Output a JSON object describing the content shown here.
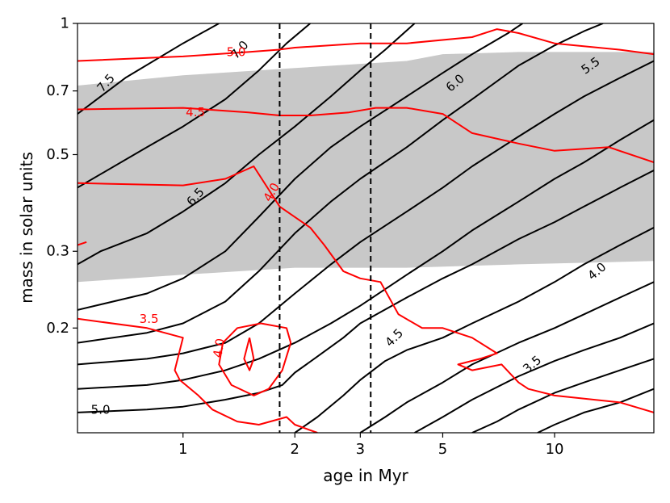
{
  "chart_data": {
    "type": "contour",
    "xlabel": "age in Myr",
    "ylabel": "mass in solar units",
    "x_scale": "log",
    "y_scale": "log",
    "xlim": [
      0.52,
      18.5
    ],
    "ylim": [
      0.115,
      1.0
    ],
    "x_ticks": [
      {
        "value": 1,
        "label": "1"
      },
      {
        "value": 2,
        "label": "2"
      },
      {
        "value": 3,
        "label": "3"
      },
      {
        "value": 5,
        "label": "5"
      },
      {
        "value": 10,
        "label": "10"
      }
    ],
    "y_ticks": [
      {
        "value": 0.2,
        "label": "0.2"
      },
      {
        "value": 0.3,
        "label": "0.3"
      },
      {
        "value": 0.5,
        "label": "0.5"
      },
      {
        "value": 0.7,
        "label": "0.7"
      },
      {
        "value": 1.0,
        "label": "1"
      }
    ],
    "colors": {
      "black_contours": "#000000",
      "red_contours": "#ff0000",
      "shaded_band": "#c8c8c8",
      "vlines": "#000000"
    },
    "shaded_band": {
      "upper": [
        [
          0.52,
          0.72
        ],
        [
          1.0,
          0.76
        ],
        [
          2.0,
          0.79
        ],
        [
          4.0,
          0.82
        ],
        [
          5.0,
          0.85
        ],
        [
          8.0,
          0.86
        ],
        [
          18.5,
          0.86
        ]
      ],
      "lower": [
        [
          0.52,
          0.255
        ],
        [
          1.0,
          0.265
        ],
        [
          2.0,
          0.275
        ],
        [
          4.0,
          0.275
        ],
        [
          8.0,
          0.28
        ],
        [
          18.5,
          0.285
        ]
      ]
    },
    "vertical_lines": [
      1.82,
      3.2
    ],
    "black_contours": [
      {
        "level": "7.5",
        "points": [
          [
            0.52,
            0.62
          ],
          [
            0.7,
            0.75
          ],
          [
            1.0,
            0.9
          ],
          [
            1.25,
            1.0
          ]
        ]
      },
      {
        "level": "7.0",
        "points": [
          [
            0.52,
            0.42
          ],
          [
            0.8,
            0.52
          ],
          [
            1.0,
            0.58
          ],
          [
            1.3,
            0.67
          ],
          [
            1.6,
            0.78
          ],
          [
            1.9,
            0.9
          ],
          [
            2.2,
            1.0
          ]
        ]
      },
      {
        "level": "6.5",
        "points": [
          [
            0.52,
            0.28
          ],
          [
            0.6,
            0.3
          ],
          [
            0.8,
            0.33
          ],
          [
            1.0,
            0.37
          ],
          [
            1.3,
            0.43
          ],
          [
            1.6,
            0.5
          ],
          [
            2.0,
            0.58
          ],
          [
            2.5,
            0.68
          ],
          [
            3.0,
            0.78
          ],
          [
            3.5,
            0.87
          ],
          [
            4.2,
            1.0
          ]
        ]
      },
      {
        "level": "",
        "points": [
          [
            0.52,
            0.22
          ],
          [
            0.8,
            0.24
          ],
          [
            1.0,
            0.26
          ],
          [
            1.3,
            0.3
          ],
          [
            1.6,
            0.36
          ],
          [
            2.0,
            0.44
          ],
          [
            2.5,
            0.52
          ],
          [
            3.0,
            0.58
          ],
          [
            4.0,
            0.68
          ],
          [
            5.0,
            0.77
          ],
          [
            6.0,
            0.85
          ],
          [
            7.5,
            0.95
          ],
          [
            8.2,
            1.0
          ]
        ]
      },
      {
        "level": "6.0",
        "points": [
          [
            0.52,
            0.185
          ],
          [
            0.8,
            0.195
          ],
          [
            1.0,
            0.205
          ],
          [
            1.3,
            0.23
          ],
          [
            1.6,
            0.27
          ],
          [
            2.0,
            0.33
          ],
          [
            2.5,
            0.39
          ],
          [
            3.0,
            0.44
          ],
          [
            4.0,
            0.52
          ],
          [
            5.0,
            0.6
          ],
          [
            6.0,
            0.67
          ],
          [
            8.0,
            0.8
          ],
          [
            10.0,
            0.89
          ],
          [
            12.0,
            0.96
          ],
          [
            13.5,
            1.0
          ]
        ]
      },
      {
        "level": "5.5",
        "points": [
          [
            0.52,
            0.165
          ],
          [
            0.8,
            0.17
          ],
          [
            1.0,
            0.175
          ],
          [
            1.3,
            0.185
          ],
          [
            1.6,
            0.205
          ],
          [
            2.0,
            0.24
          ],
          [
            2.5,
            0.28
          ],
          [
            3.0,
            0.315
          ],
          [
            4.0,
            0.37
          ],
          [
            5.0,
            0.42
          ],
          [
            6.0,
            0.47
          ],
          [
            8.0,
            0.55
          ],
          [
            10.0,
            0.62
          ],
          [
            12.0,
            0.68
          ],
          [
            15.0,
            0.75
          ],
          [
            18.5,
            0.82
          ]
        ]
      },
      {
        "level": "",
        "points": [
          [
            0.52,
            0.145
          ],
          [
            0.8,
            0.148
          ],
          [
            1.0,
            0.152
          ],
          [
            1.3,
            0.16
          ],
          [
            1.6,
            0.17
          ],
          [
            2.0,
            0.185
          ],
          [
            2.5,
            0.205
          ],
          [
            3.0,
            0.225
          ],
          [
            4.0,
            0.265
          ],
          [
            5.0,
            0.3
          ],
          [
            6.0,
            0.335
          ],
          [
            8.0,
            0.39
          ],
          [
            10.0,
            0.44
          ],
          [
            12.0,
            0.48
          ],
          [
            15.0,
            0.54
          ],
          [
            18.5,
            0.6
          ]
        ]
      },
      {
        "level": "5.0",
        "points": [
          [
            0.52,
            0.128
          ],
          [
            0.8,
            0.13
          ],
          [
            1.0,
            0.132
          ],
          [
            1.3,
            0.137
          ],
          [
            1.6,
            0.142
          ],
          [
            1.85,
            0.148
          ],
          [
            2.0,
            0.158
          ],
          [
            2.3,
            0.172
          ],
          [
            2.7,
            0.19
          ],
          [
            3.0,
            0.205
          ],
          [
            4.0,
            0.235
          ],
          [
            5.0,
            0.26
          ],
          [
            6.0,
            0.28
          ],
          [
            8.0,
            0.32
          ],
          [
            10.0,
            0.35
          ],
          [
            12.0,
            0.38
          ],
          [
            15.0,
            0.42
          ],
          [
            18.5,
            0.46
          ]
        ]
      },
      {
        "level": "4.5",
        "points": [
          [
            2.0,
            0.115
          ],
          [
            2.3,
            0.125
          ],
          [
            2.7,
            0.14
          ],
          [
            3.0,
            0.152
          ],
          [
            3.5,
            0.168
          ],
          [
            4.0,
            0.178
          ],
          [
            5.0,
            0.19
          ],
          [
            6.0,
            0.205
          ],
          [
            8.0,
            0.23
          ],
          [
            10.0,
            0.255
          ],
          [
            12.0,
            0.28
          ],
          [
            15.0,
            0.31
          ],
          [
            18.5,
            0.34
          ]
        ]
      },
      {
        "level": "4.0",
        "points": [
          [
            3.0,
            0.115
          ],
          [
            3.5,
            0.125
          ],
          [
            4.0,
            0.135
          ],
          [
            5.0,
            0.15
          ],
          [
            6.0,
            0.165
          ],
          [
            8.0,
            0.185
          ],
          [
            10.0,
            0.2
          ],
          [
            12.0,
            0.215
          ],
          [
            15.0,
            0.235
          ],
          [
            18.5,
            0.255
          ]
        ]
      },
      {
        "level": "",
        "points": [
          [
            4.2,
            0.115
          ],
          [
            5.0,
            0.125
          ],
          [
            6.0,
            0.137
          ],
          [
            8.0,
            0.155
          ],
          [
            10.0,
            0.168
          ],
          [
            12.0,
            0.178
          ],
          [
            15.0,
            0.19
          ],
          [
            18.5,
            0.205
          ]
        ]
      },
      {
        "level": "3.5",
        "points": [
          [
            6.0,
            0.115
          ],
          [
            7.0,
            0.122
          ],
          [
            8.0,
            0.13
          ],
          [
            10.0,
            0.142
          ],
          [
            12.0,
            0.15
          ],
          [
            15.0,
            0.16
          ],
          [
            18.5,
            0.17
          ]
        ]
      },
      {
        "level": "",
        "points": [
          [
            9.0,
            0.115
          ],
          [
            10.0,
            0.12
          ],
          [
            12.0,
            0.128
          ],
          [
            15.0,
            0.135
          ],
          [
            18.5,
            0.145
          ]
        ]
      }
    ],
    "red_contours": [
      {
        "level": "5.0",
        "points": [
          [
            0.52,
            0.82
          ],
          [
            1.0,
            0.84
          ],
          [
            1.5,
            0.86
          ],
          [
            1.8,
            0.87
          ],
          [
            2.0,
            0.88
          ],
          [
            3.0,
            0.9
          ],
          [
            4.0,
            0.9
          ],
          [
            6.0,
            0.93
          ],
          [
            7.0,
            0.97
          ],
          [
            8.0,
            0.95
          ],
          [
            10.0,
            0.9
          ],
          [
            15.0,
            0.87
          ],
          [
            18.5,
            0.85
          ]
        ]
      },
      {
        "level": "4.5",
        "points": [
          [
            0.52,
            0.635
          ],
          [
            1.0,
            0.64
          ],
          [
            1.5,
            0.625
          ],
          [
            1.82,
            0.615
          ],
          [
            2.2,
            0.615
          ],
          [
            2.8,
            0.625
          ],
          [
            3.3,
            0.64
          ],
          [
            4.0,
            0.64
          ],
          [
            5.0,
            0.62
          ],
          [
            6.0,
            0.56
          ],
          [
            8.0,
            0.53
          ],
          [
            10.0,
            0.51
          ],
          [
            14.0,
            0.52
          ],
          [
            18.5,
            0.48
          ]
        ]
      },
      {
        "level": "4.0",
        "points": [
          [
            0.52,
            0.43
          ],
          [
            1.0,
            0.425
          ],
          [
            1.3,
            0.44
          ],
          [
            1.55,
            0.47
          ],
          [
            1.82,
            0.38
          ],
          [
            2.2,
            0.34
          ],
          [
            2.4,
            0.31
          ],
          [
            2.7,
            0.27
          ],
          [
            3.0,
            0.26
          ],
          [
            3.4,
            0.255
          ],
          [
            3.8,
            0.215
          ],
          [
            4.4,
            0.2
          ],
          [
            5.0,
            0.2
          ],
          [
            6.0,
            0.19
          ],
          [
            7.0,
            0.175
          ],
          [
            6.3,
            0.17
          ],
          [
            5.5,
            0.165
          ],
          [
            6.0,
            0.16
          ],
          [
            7.2,
            0.165
          ],
          [
            8.0,
            0.15
          ],
          [
            8.5,
            0.145
          ],
          [
            10.0,
            0.14
          ],
          [
            15.0,
            0.135
          ],
          [
            18.5,
            0.128
          ]
        ]
      },
      {
        "level": "3.5",
        "points": [
          [
            0.52,
            0.21
          ],
          [
            0.8,
            0.2
          ],
          [
            1.0,
            0.19
          ],
          [
            0.95,
            0.16
          ],
          [
            0.98,
            0.152
          ],
          [
            1.1,
            0.14
          ],
          [
            1.2,
            0.13
          ],
          [
            1.4,
            0.122
          ],
          [
            1.6,
            0.12
          ],
          [
            1.9,
            0.125
          ],
          [
            2.0,
            0.12
          ],
          [
            2.3,
            0.115
          ]
        ]
      },
      {
        "level": "4.0",
        "points": [
          [
            1.62,
            0.205
          ],
          [
            1.9,
            0.2
          ],
          [
            1.95,
            0.185
          ],
          [
            1.85,
            0.16
          ],
          [
            1.7,
            0.145
          ],
          [
            1.55,
            0.14
          ],
          [
            1.35,
            0.148
          ],
          [
            1.25,
            0.165
          ],
          [
            1.28,
            0.185
          ],
          [
            1.4,
            0.2
          ],
          [
            1.62,
            0.205
          ]
        ]
      },
      {
        "level": "",
        "points": [
          [
            1.51,
            0.19
          ],
          [
            1.55,
            0.17
          ],
          [
            1.51,
            0.16
          ],
          [
            1.46,
            0.17
          ],
          [
            1.51,
            0.19
          ]
        ]
      },
      {
        "level": "",
        "points": [
          [
            0.52,
            0.31
          ],
          [
            0.55,
            0.315
          ]
        ]
      }
    ],
    "contour_labels": [
      {
        "text": "7.5",
        "x": 0.62,
        "y": 0.73,
        "color": "black",
        "angle": -48
      },
      {
        "text": "7.0",
        "x": 1.42,
        "y": 0.87,
        "color": "black",
        "angle": -48
      },
      {
        "text": "6.5",
        "x": 1.08,
        "y": 0.4,
        "color": "black",
        "angle": -48
      },
      {
        "text": "6.0",
        "x": 5.4,
        "y": 0.73,
        "color": "black",
        "angle": -40
      },
      {
        "text": "5.5",
        "x": 12.5,
        "y": 0.8,
        "color": "black",
        "angle": -35
      },
      {
        "text": "5.0",
        "x": 0.6,
        "y": 0.13,
        "color": "black",
        "angle": 0
      },
      {
        "text": "4.5",
        "x": 3.7,
        "y": 0.19,
        "color": "black",
        "angle": -45
      },
      {
        "text": "4.0",
        "x": 13.0,
        "y": 0.27,
        "color": "black",
        "angle": -40
      },
      {
        "text": "3.5",
        "x": 8.7,
        "y": 0.165,
        "color": "black",
        "angle": -40
      },
      {
        "text": "5.0",
        "x": 1.39,
        "y": 0.86,
        "color": "red",
        "angle": 0
      },
      {
        "text": "4.5",
        "x": 1.08,
        "y": 0.625,
        "color": "red",
        "angle": 0
      },
      {
        "text": "4.0",
        "x": 1.73,
        "y": 0.41,
        "color": "red",
        "angle": -60
      },
      {
        "text": "3.5",
        "x": 0.81,
        "y": 0.21,
        "color": "red",
        "angle": 0
      },
      {
        "text": "4.0",
        "x": 1.25,
        "y": 0.18,
        "color": "red",
        "angle": -80
      }
    ]
  }
}
